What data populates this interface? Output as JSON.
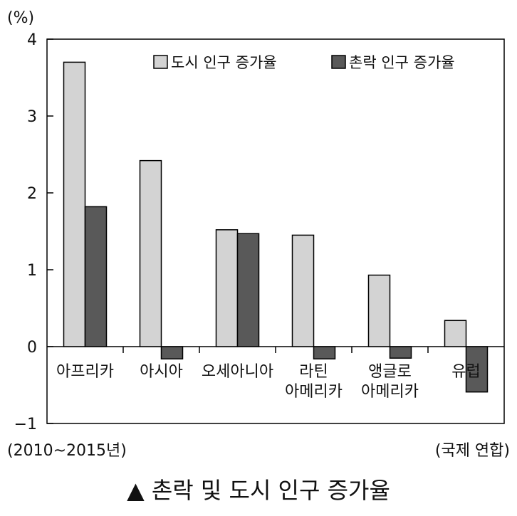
{
  "chart_data": {
    "type": "bar",
    "unit_label": "(%)",
    "categories": [
      [
        "아프리카"
      ],
      [
        "아시아"
      ],
      [
        "오세아니아"
      ],
      [
        "라틴",
        "아메리카"
      ],
      [
        "앵글로",
        "아메리카"
      ],
      [
        "유럽"
      ]
    ],
    "series": [
      {
        "name": "도시 인구 증가율",
        "color": "#d3d3d3",
        "values": [
          3.7,
          2.42,
          1.52,
          1.45,
          0.93,
          0.34
        ]
      },
      {
        "name": "촌락 인구 증가율",
        "color": "#595959",
        "values": [
          1.82,
          -0.16,
          1.47,
          -0.16,
          -0.15,
          -0.59
        ]
      }
    ],
    "ylim": [
      -1,
      4
    ],
    "yticks": [
      -1,
      0,
      1,
      2,
      3,
      4
    ],
    "ytick_labels": [
      "−1",
      "0",
      "1",
      "2",
      "3",
      "4"
    ],
    "legend_position": "top-right",
    "period_note": "(2010~2015년)",
    "source": "(국제 연합)",
    "caption": "▲ 촌락 및 도시 인구 증가율"
  }
}
